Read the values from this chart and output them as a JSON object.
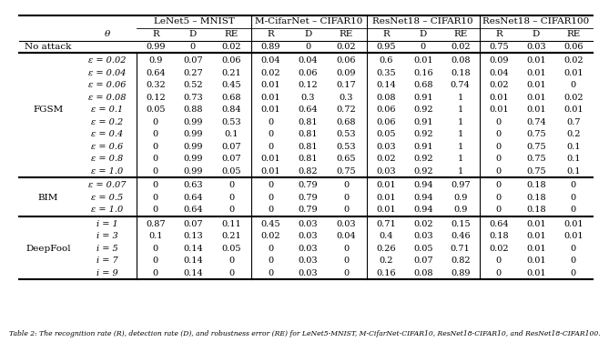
{
  "top_headers": [
    "LeNet5 – MNIST",
    "M-CifarNet – CIFAR10",
    "ResNet18 – CIFAR10",
    "ResNet18 – CIFAR100"
  ],
  "sub_cols": [
    "R",
    "D",
    "RE"
  ],
  "no_attack_vals": [
    "0.99",
    "0",
    "0.02",
    "0.89",
    "0",
    "0.02",
    "0.95",
    "0",
    "0.02",
    "0.75",
    "0.03",
    "0.06"
  ],
  "fgsm_rows": [
    [
      "ε = 0.02",
      "0.9",
      "0.07",
      "0.06",
      "0.04",
      "0.04",
      "0.06",
      "0.6",
      "0.01",
      "0.08",
      "0.09",
      "0.01",
      "0.02"
    ],
    [
      "ε = 0.04",
      "0.64",
      "0.27",
      "0.21",
      "0.02",
      "0.06",
      "0.09",
      "0.35",
      "0.16",
      "0.18",
      "0.04",
      "0.01",
      "0.01"
    ],
    [
      "ε = 0.06",
      "0.32",
      "0.52",
      "0.45",
      "0.01",
      "0.12",
      "0.17",
      "0.14",
      "0.68",
      "0.74",
      "0.02",
      "0.01",
      "0"
    ],
    [
      "ε = 0.08",
      "0.12",
      "0.73",
      "0.68",
      "0.01",
      "0.3",
      "0.3",
      "0.08",
      "0.91",
      "1",
      "0.01",
      "0.01",
      "0.02"
    ],
    [
      "ε = 0.1",
      "0.05",
      "0.88",
      "0.84",
      "0.01",
      "0.64",
      "0.72",
      "0.06",
      "0.92",
      "1",
      "0.01",
      "0.01",
      "0.01"
    ],
    [
      "ε = 0.2",
      "0",
      "0.99",
      "0.53",
      "0",
      "0.81",
      "0.68",
      "0.06",
      "0.91",
      "1",
      "0",
      "0.74",
      "0.7"
    ],
    [
      "ε = 0.4",
      "0",
      "0.99",
      "0.1",
      "0",
      "0.81",
      "0.53",
      "0.05",
      "0.92",
      "1",
      "0",
      "0.75",
      "0.2"
    ],
    [
      "ε = 0.6",
      "0",
      "0.99",
      "0.07",
      "0",
      "0.81",
      "0.53",
      "0.03",
      "0.91",
      "1",
      "0",
      "0.75",
      "0.1"
    ],
    [
      "ε = 0.8",
      "0",
      "0.99",
      "0.07",
      "0.01",
      "0.81",
      "0.65",
      "0.02",
      "0.92",
      "1",
      "0",
      "0.75",
      "0.1"
    ],
    [
      "ε = 1.0",
      "0",
      "0.99",
      "0.05",
      "0.01",
      "0.82",
      "0.75",
      "0.03",
      "0.92",
      "1",
      "0",
      "0.75",
      "0.1"
    ]
  ],
  "bim_rows": [
    [
      "ε = 0.07",
      "0",
      "0.63",
      "0",
      "0",
      "0.79",
      "0",
      "0.01",
      "0.94",
      "0.97",
      "0",
      "0.18",
      "0"
    ],
    [
      "ε = 0.5",
      "0",
      "0.64",
      "0",
      "0",
      "0.79",
      "0",
      "0.01",
      "0.94",
      "0.9",
      "0",
      "0.18",
      "0"
    ],
    [
      "ε = 1.0",
      "0",
      "0.64",
      "0",
      "0",
      "0.79",
      "0",
      "0.01",
      "0.94",
      "0.9",
      "0",
      "0.18",
      "0"
    ]
  ],
  "deepfool_rows": [
    [
      "i = 1",
      "0.87",
      "0.07",
      "0.11",
      "0.45",
      "0.03",
      "0.03",
      "0.71",
      "0.02",
      "0.15",
      "0.64",
      "0.01",
      "0.01"
    ],
    [
      "i = 3",
      "0.1",
      "0.13",
      "0.21",
      "0.02",
      "0.03",
      "0.04",
      "0.4",
      "0.03",
      "0.46",
      "0.18",
      "0.01",
      "0.01"
    ],
    [
      "i = 5",
      "0",
      "0.14",
      "0.05",
      "0",
      "0.03",
      "0",
      "0.26",
      "0.05",
      "0.71",
      "0.02",
      "0.01",
      "0"
    ],
    [
      "i = 7",
      "0",
      "0.14",
      "0",
      "0",
      "0.03",
      "0",
      "0.2",
      "0.07",
      "0.82",
      "0",
      "0.01",
      "0"
    ],
    [
      "i = 9",
      "0",
      "0.14",
      "0",
      "0",
      "0.03",
      "0",
      "0.16",
      "0.08",
      "0.89",
      "0",
      "0.01",
      "0"
    ]
  ],
  "caption": "Table 2: The recognition rate (R), detection rate (D), and robustness error (RE) for LeNet5-MNIST, M-CifarNet-CIFAR10, ResNet18-CIFAR10, and ResNet18-CIFAR100.",
  "fgsm_label_row": 4,
  "bim_label_row": 1,
  "deepfool_label_row": 2,
  "bg_color": "#ffffff",
  "line_color": "#000000",
  "text_color": "#000000",
  "fontsize_header": 7.5,
  "fontsize_data": 7.0,
  "fontsize_caption": 5.5
}
